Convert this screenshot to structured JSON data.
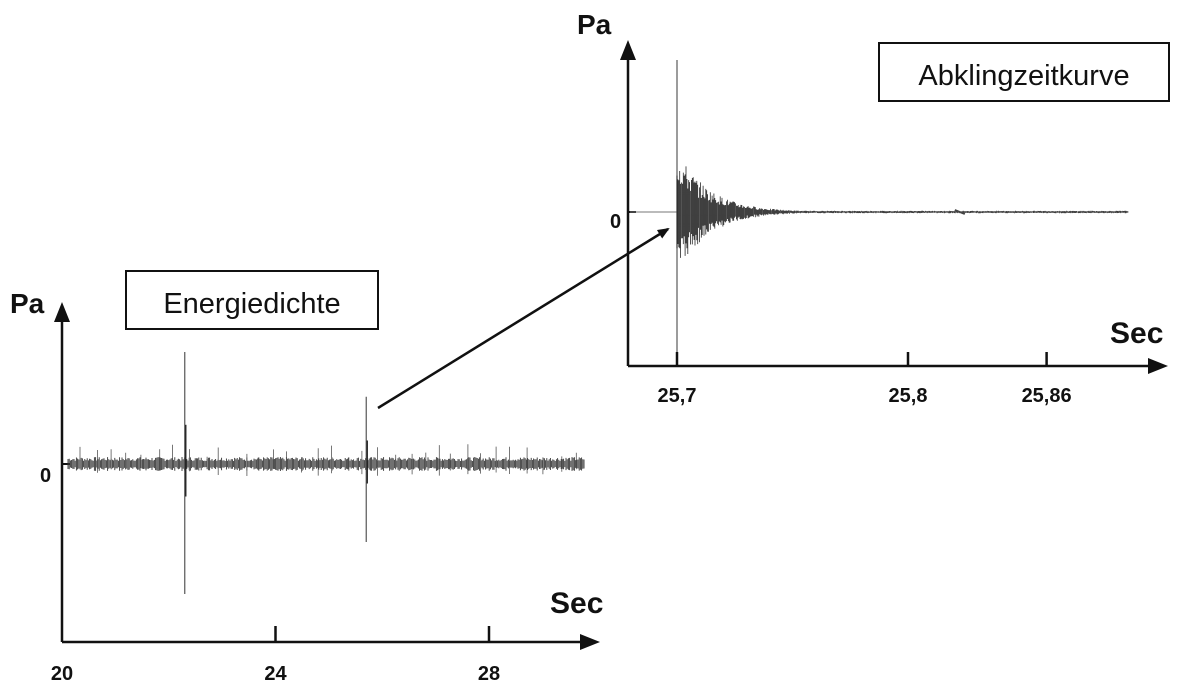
{
  "chart_data": [
    {
      "type": "line",
      "title": "Energiedichte",
      "ylabel": "Pa",
      "xlabel": "Sec",
      "x_ticks": [
        20,
        24,
        28
      ],
      "x_tick_labels": [
        "20",
        "24",
        "28"
      ],
      "y_tick_labels": [
        "0"
      ],
      "xlim": [
        20,
        29.8
      ],
      "spikes": [
        {
          "x": 22.3,
          "amplitude": 1.0
        },
        {
          "x": 25.7,
          "amplitude": 0.6
        }
      ]
    },
    {
      "type": "line",
      "title": "Abklingzeitkurve",
      "ylabel": "Pa",
      "xlabel": "Sec",
      "x_ticks": [
        25.7,
        25.8,
        25.86
      ],
      "x_tick_labels": [
        "25,7",
        "25,8",
        "25,86"
      ],
      "y_tick_labels": [
        "0"
      ],
      "xlim": [
        25.69,
        25.87
      ],
      "decay_start": 25.7,
      "decay_end": 25.75
    }
  ]
}
